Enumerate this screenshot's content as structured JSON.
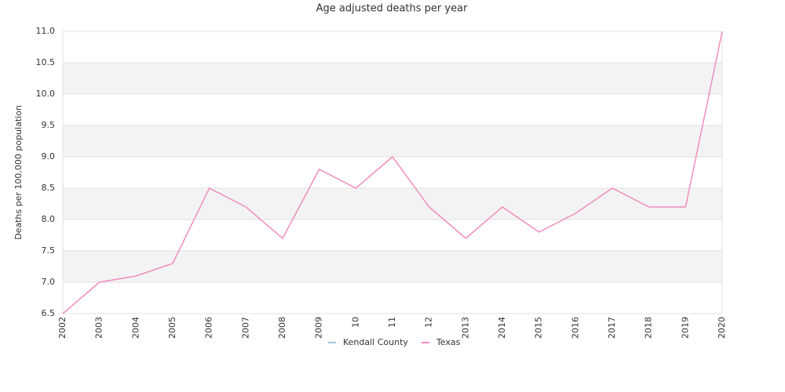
{
  "chart_data": {
    "type": "line",
    "title": "Age adjusted deaths per year",
    "y_label": "Deaths per 100,000 population",
    "categories": [
      "2002",
      "2003",
      "2004",
      "2005",
      "2006",
      "2007",
      "2008",
      "2009",
      "10",
      "11",
      "12",
      "2013",
      "2014",
      "2015",
      "2016",
      "2017",
      "2018",
      "2019",
      "2020"
    ],
    "series": [
      {
        "name": "Kendall County",
        "color": "#9ecae1",
        "values": [
          null,
          null,
          null,
          null,
          null,
          null,
          null,
          null,
          null,
          null,
          null,
          null,
          null,
          null,
          null,
          null,
          null,
          null,
          null
        ]
      },
      {
        "name": "Texas",
        "color": "#f08dbf",
        "values": [
          6.5,
          7.0,
          7.1,
          7.3,
          8.5,
          8.2,
          7.7,
          8.8,
          8.5,
          9.0,
          8.2,
          7.7,
          8.2,
          7.8,
          8.1,
          8.5,
          8.2,
          8.2,
          11.0
        ]
      }
    ],
    "ylim": [
      6.5,
      11.0
    ],
    "yticks": [
      6.5,
      {
        "value": 7,
        "label": "7.0"
      },
      7.5,
      {
        "value": 8,
        "label": "8.0"
      },
      8.5,
      {
        "value": 9,
        "label": "9.0"
      },
      9.5,
      {
        "value": 10,
        "label": "10.0"
      },
      10.5,
      {
        "value": 11,
        "label": "11.0"
      }
    ],
    "grid": true,
    "legend": "bottom"
  }
}
